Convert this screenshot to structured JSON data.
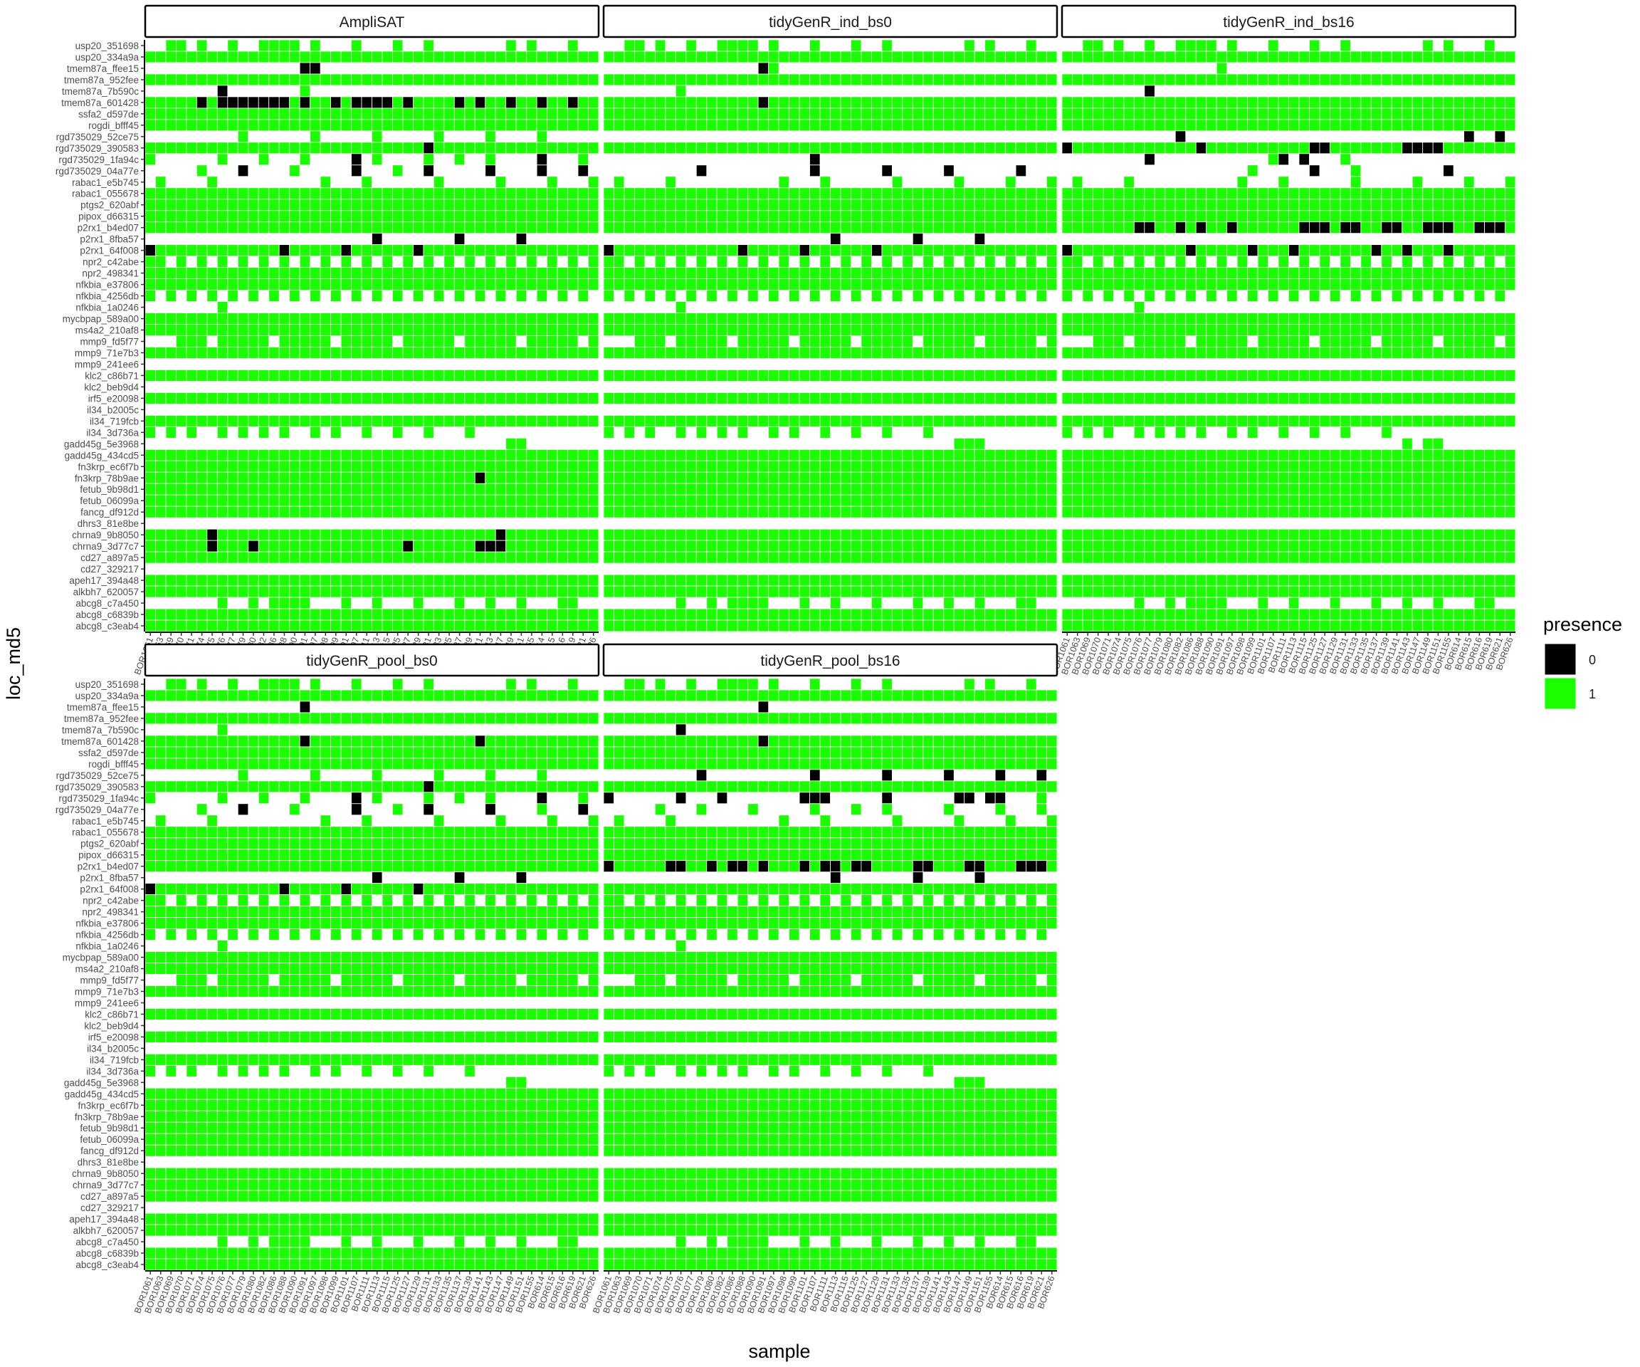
{
  "chart_data": {
    "type": "heatmap",
    "xlabel": "sample",
    "ylabel": "loc_md5",
    "legend": {
      "title": "presence",
      "position": "right",
      "entries": [
        {
          "label": "0",
          "color": "#000000"
        },
        {
          "label": "1",
          "color": "#1aff00"
        }
      ]
    },
    "colors": {
      "absent": "#000000",
      "present": "#1aff00",
      "missing": "#ffffff",
      "grid": "#ffffff"
    },
    "samples": [
      "BOR1061",
      "BOR1063",
      "BOR1069",
      "BOR1070",
      "BOR1071",
      "BOR1074",
      "BOR1075",
      "BOR1076",
      "BOR1077",
      "BOR1079",
      "BOR1080",
      "BOR1082",
      "BOR1086",
      "BOR1088",
      "BOR1090",
      "BOR1091",
      "BOR1097",
      "BOR1098",
      "BOR1099",
      "BOR1101",
      "BOR1107",
      "BOR1111",
      "BOR1113",
      "BOR1115",
      "BOR1125",
      "BOR1127",
      "BOR1129",
      "BOR1131",
      "BOR1133",
      "BOR1135",
      "BOR1137",
      "BOR1139",
      "BOR1141",
      "BOR1143",
      "BOR1147",
      "BOR1149",
      "BOR1151",
      "BOR1155",
      "BOR614",
      "BOR615",
      "BOR616",
      "BOR619",
      "BOR621",
      "BOR626"
    ],
    "loci": [
      "usp20_351698",
      "usp20_334a9a",
      "tmem87a_ffee15",
      "tmem87a_952fee",
      "tmem87a_7b590c",
      "tmem87a_601428",
      "ssfa2_d597de",
      "rogdi_bfff45",
      "rgd735029_52ce75",
      "rgd735029_390583",
      "rgd735029_1fa94c",
      "rgd735029_04a77e",
      "rabac1_e5b745",
      "rabac1_055678",
      "ptgs2_620abf",
      "pipox_d66315",
      "p2rx1_b4ed07",
      "p2rx1_8fba57",
      "p2rx1_64f008",
      "npr2_c42abe",
      "npr2_498341",
      "nfkbia_e37806",
      "nfkbia_4256db",
      "nfkbia_1a0246",
      "mycbpap_589a00",
      "ms4a2_210af8",
      "mmp9_fd5f77",
      "mmp9_71e7b3",
      "mmp9_241ee6",
      "klc2_c86b71",
      "klc2_beb9d4",
      "irf5_e20098",
      "il34_b2005c",
      "il34_719fcb",
      "il34_3d736a",
      "gadd45g_5e3968",
      "gadd45g_434cd5",
      "fn3krp_ec6f7b",
      "fn3krp_78b9ae",
      "fetub_9b98d1",
      "fetub_06099a",
      "fancg_df912d",
      "dhrs3_81e8be",
      "chrna9_9b8050",
      "chrna9_3d77c7",
      "cd27_a897a5",
      "cd27_329217",
      "apeh17_394a48",
      "alkbh7_620057",
      "abcg8_c7a450",
      "abcg8_c6839b",
      "abcg8_c3eab4"
    ],
    "default_missing_rows": {
      "usp20_351698": [
        0,
        1,
        4,
        6,
        7,
        9,
        10,
        15,
        17,
        18,
        19,
        21,
        22,
        23,
        25,
        26,
        28,
        29,
        30,
        31,
        32,
        33,
        34,
        36,
        38,
        39,
        40,
        42,
        43
      ],
      "tmem87a_ffee15": [],
      "tmem87a_7b590c": [],
      "tmem87a_601428": [],
      "rgd735029_52ce75": [],
      "rgd735029_1fa94c": [],
      "rgd735029_04a77e": [],
      "rabac1_e5b745": [
        0,
        2,
        3,
        4,
        5,
        7,
        8,
        9,
        10,
        11,
        12,
        13,
        14,
        15,
        16,
        18,
        19,
        20,
        22,
        23,
        24,
        25,
        26,
        27,
        29,
        30,
        31,
        32,
        33,
        35,
        36,
        37,
        38,
        40,
        41,
        42
      ],
      "p2rx1_8fba57": [],
      "npr2_c42abe": [
        2,
        4,
        6,
        8,
        10,
        12,
        14,
        16,
        18,
        20,
        22,
        24,
        26,
        28,
        30,
        32,
        34,
        36,
        38,
        40,
        42
      ],
      "nfkbia_4256db": [
        1,
        3,
        5,
        7,
        9,
        11,
        13,
        15,
        17,
        19,
        21,
        23,
        25,
        27,
        29,
        31,
        33,
        35,
        37,
        39,
        41,
        43
      ],
      "nfkbia_1a0246": [
        0,
        1,
        2,
        3,
        4,
        5,
        6,
        8,
        9,
        10,
        11,
        12,
        13,
        14,
        15,
        16,
        17,
        18,
        19,
        20,
        21,
        22,
        23,
        24,
        25,
        26,
        27,
        28,
        29,
        30,
        31,
        32,
        33,
        34,
        35,
        36,
        37,
        38,
        39,
        40,
        41,
        42,
        43
      ],
      "mmp9_fd5f77": [
        0,
        1,
        2,
        6,
        12,
        18,
        24,
        30,
        36,
        42
      ],
      "mmp9_241ee6": [
        0,
        1,
        2,
        3,
        4,
        5,
        6,
        7,
        8,
        9,
        10,
        11,
        12,
        13,
        14,
        15,
        16,
        17,
        18,
        19,
        20,
        21,
        22,
        23,
        24,
        25,
        26,
        27,
        28,
        29,
        30,
        31,
        32,
        33,
        34,
        35,
        36,
        37,
        38,
        39,
        40,
        41,
        42,
        43
      ],
      "klc2_beb9d4": [
        0,
        1,
        2,
        3,
        4,
        5,
        6,
        7,
        8,
        9,
        10,
        11,
        12,
        13,
        14,
        15,
        16,
        17,
        18,
        19,
        20,
        21,
        22,
        23,
        24,
        25,
        26,
        27,
        28,
        29,
        30,
        31,
        32,
        33,
        34,
        35,
        36,
        37,
        38,
        39,
        40,
        41,
        42,
        43
      ],
      "il34_b2005c": [
        0,
        1,
        2,
        3,
        4,
        5,
        6,
        7,
        8,
        9,
        10,
        11,
        12,
        13,
        14,
        15,
        16,
        17,
        18,
        19,
        20,
        21,
        22,
        23,
        24,
        25,
        26,
        27,
        28,
        29,
        30,
        31,
        32,
        33,
        34,
        35,
        36,
        37,
        38,
        39,
        40,
        41,
        42,
        43
      ],
      "il34_3d736a": [],
      "gadd45g_5e3968": [],
      "dhrs3_81e8be": [],
      "cd27_329217": [],
      "abcg8_c7a450": []
    },
    "panels": [
      {
        "title": "AmpliSAT",
        "absent": {
          "tmem87a_ffee15": [
            15,
            16
          ],
          "tmem87a_7b590c": [
            7
          ],
          "tmem87a_601428": [
            5,
            7,
            8,
            9,
            10,
            11,
            12,
            13,
            15,
            18,
            20,
            21,
            22,
            23,
            25,
            30,
            32,
            35,
            38,
            41
          ],
          "rgd735029_390583": [
            27
          ],
          "rgd735029_1fa94c": [
            20,
            38
          ],
          "rgd735029_04a77e": [
            9,
            20,
            27,
            33,
            38,
            42
          ],
          "p2rx1_8fba57": [
            22,
            30,
            36
          ],
          "p2rx1_64f008": [
            0,
            13,
            19,
            26
          ],
          "fn3krp_78b9ae": [
            32
          ],
          "chrna9_9b8050": [
            6,
            34
          ],
          "chrna9_3d77c7": [
            6,
            10,
            25,
            32,
            33,
            34
          ]
        },
        "present_sparse": {
          "tmem87a_ffee15": [],
          "tmem87a_7b590c": [
            15
          ],
          "rgd735029_52ce75": [
            9,
            16,
            22,
            28,
            33,
            38
          ],
          "rgd735029_1fa94c": [
            0,
            7,
            11,
            15,
            20,
            22,
            27,
            30,
            33,
            38,
            42
          ],
          "rgd735029_04a77e": [
            5,
            9,
            14,
            20,
            24,
            27,
            33,
            38,
            42
          ],
          "p2rx1_8fba57": [
            22,
            30,
            36
          ],
          "il34_3d736a": [
            0,
            2,
            4,
            7,
            9,
            11,
            13,
            16,
            18,
            21,
            24,
            27,
            31
          ],
          "gadd45g_5e3968": [
            35,
            36
          ],
          "dhrs3_81e8be": [],
          "cd27_329217": [],
          "abcg8_c7a450": [
            7,
            10,
            12,
            13,
            14,
            15,
            19,
            22,
            26,
            30,
            33,
            36,
            40,
            41
          ]
        },
        "xticks": true,
        "show_y": true
      },
      {
        "title": "tidyGenR_ind_bs0",
        "absent": {
          "tmem87a_ffee15": [
            15
          ],
          "tmem87a_601428": [
            15
          ],
          "rgd735029_1fa94c": [
            20
          ],
          "rgd735029_04a77e": [
            9,
            20,
            27,
            33,
            40
          ],
          "p2rx1_8fba57": [
            22,
            30,
            36
          ],
          "p2rx1_64f008": [
            0,
            13,
            19,
            26
          ]
        },
        "present_sparse": {
          "tmem87a_ffee15": [
            16
          ],
          "tmem87a_7b590c": [
            7
          ],
          "rgd735029_52ce75": [],
          "rgd735029_1fa94c": [
            20
          ],
          "rgd735029_04a77e": [
            9,
            20,
            27,
            33,
            40
          ],
          "p2rx1_8fba57": [
            22,
            30,
            36
          ],
          "il34_3d736a": [
            0,
            2,
            4,
            7,
            9,
            11,
            13,
            16,
            18,
            21,
            24,
            27,
            31
          ],
          "gadd45g_5e3968": [
            34,
            35,
            36
          ],
          "dhrs3_81e8be": [],
          "cd27_329217": [],
          "abcg8_c7a450": [
            7,
            10,
            12,
            13,
            14,
            15,
            19,
            22,
            26,
            30,
            33,
            36,
            40,
            41
          ]
        },
        "xticks": false,
        "show_y": false
      },
      {
        "title": "tidyGenR_ind_bs16",
        "absent": {
          "tmem87a_7b590c": [
            8
          ],
          "tmem87a_601428": [],
          "rgd735029_52ce75": [
            11,
            39,
            42
          ],
          "rgd735029_390583": [
            0,
            13,
            24,
            25,
            33,
            34,
            35,
            36
          ],
          "rgd735029_1fa94c": [
            8,
            21,
            23
          ],
          "rgd735029_04a77e": [
            24,
            37
          ],
          "p2rx1_b4ed07": [
            7,
            8,
            11,
            13,
            16,
            23,
            24,
            25,
            27,
            28,
            31,
            32,
            35,
            36,
            37,
            40,
            41,
            42
          ],
          "p2rx1_64f008": [
            0,
            12,
            18,
            22,
            30,
            33,
            37
          ]
        },
        "present_sparse": {
          "tmem87a_ffee15": [
            15
          ],
          "tmem87a_7b590c": [
            8
          ],
          "rgd735029_52ce75": [
            11,
            39,
            42
          ],
          "rgd735029_1fa94c": [
            8,
            20,
            21,
            23,
            27
          ],
          "rgd735029_04a77e": [
            18,
            24,
            28,
            37
          ],
          "p2rx1_8fba57": [],
          "il34_3d736a": [
            0,
            2,
            4,
            7,
            9,
            11,
            13,
            16,
            18,
            21,
            24,
            27,
            31
          ],
          "gadd45g_5e3968": [
            33,
            35,
            36
          ],
          "dhrs3_81e8be": [],
          "cd27_329217": [],
          "abcg8_c7a450": [
            7,
            10,
            12,
            13,
            14,
            15,
            19,
            22,
            26,
            30,
            33,
            36,
            40,
            41
          ]
        },
        "xticks": true,
        "show_y": false
      },
      {
        "title": "tidyGenR_pool_bs0",
        "absent": {
          "tmem87a_ffee15": [
            15
          ],
          "tmem87a_601428": [
            15,
            32
          ],
          "rgd735029_390583": [
            27
          ],
          "rgd735029_1fa94c": [
            20,
            38
          ],
          "rgd735029_04a77e": [
            9,
            20,
            27,
            33,
            42
          ],
          "p2rx1_8fba57": [
            22,
            30,
            36
          ],
          "p2rx1_64f008": [
            0,
            13,
            19,
            26
          ]
        },
        "present_sparse": {
          "tmem87a_ffee15": [],
          "tmem87a_7b590c": [
            7
          ],
          "rgd735029_52ce75": [
            9,
            16,
            22,
            28,
            33,
            38
          ],
          "rgd735029_1fa94c": [
            0,
            7,
            11,
            15,
            20,
            22,
            27,
            30,
            33,
            38,
            42
          ],
          "rgd735029_04a77e": [
            5,
            9,
            14,
            20,
            24,
            27,
            33,
            38,
            42
          ],
          "p2rx1_8fba57": [
            22,
            30,
            36
          ],
          "il34_3d736a": [
            0,
            2,
            4,
            7,
            9,
            11,
            13,
            16,
            18,
            21,
            24,
            27,
            31
          ],
          "gadd45g_5e3968": [
            35,
            36
          ],
          "dhrs3_81e8be": [],
          "cd27_329217": [],
          "abcg8_c7a450": [
            7,
            10,
            12,
            13,
            14,
            15,
            19,
            22,
            26,
            30,
            33,
            36,
            40,
            41
          ]
        },
        "xticks": true,
        "show_y": true
      },
      {
        "title": "tidyGenR_pool_bs16",
        "absent": {
          "tmem87a_ffee15": [
            15
          ],
          "tmem87a_7b590c": [
            7
          ],
          "tmem87a_601428": [
            15
          ],
          "rgd735029_52ce75": [
            9,
            20,
            27,
            33,
            38,
            42
          ],
          "rgd735029_1fa94c": [
            0,
            7,
            11,
            19,
            20,
            21,
            27,
            34,
            35,
            37,
            38
          ],
          "p2rx1_b4ed07": [
            0,
            6,
            7,
            10,
            12,
            13,
            15,
            19,
            21,
            22,
            24,
            25,
            30,
            31,
            35,
            36,
            40,
            41,
            42
          ],
          "p2rx1_8fba57": [
            22,
            30,
            36
          ]
        },
        "present_sparse": {
          "tmem87a_ffee15": [],
          "tmem87a_7b590c": [
            7
          ],
          "rgd735029_52ce75": [
            9,
            20,
            27,
            33,
            38,
            42
          ],
          "rgd735029_1fa94c": [
            0,
            7,
            11,
            19,
            20,
            21,
            27,
            34,
            35,
            37,
            38,
            42
          ],
          "rgd735029_04a77e": [
            5,
            9,
            14,
            20,
            24,
            27,
            33,
            38,
            42
          ],
          "p2rx1_8fba57": [
            22,
            30,
            36
          ],
          "il34_3d736a": [
            0,
            2,
            4,
            7,
            9,
            11,
            13,
            16,
            18,
            21,
            24,
            27,
            31
          ],
          "gadd45g_5e3968": [
            34,
            35,
            36
          ],
          "dhrs3_81e8be": [],
          "cd27_329217": [],
          "abcg8_c7a450": [
            7,
            10,
            12,
            13,
            14,
            15,
            19,
            22,
            26,
            30,
            33,
            36,
            40,
            41
          ]
        },
        "xticks": true,
        "show_y": false
      }
    ]
  }
}
